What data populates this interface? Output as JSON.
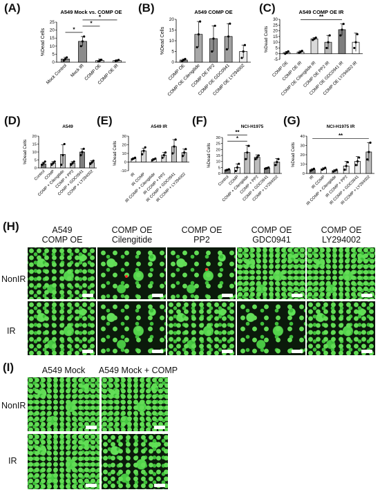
{
  "panels": {
    "A": {
      "letter": "(A)",
      "title": "A549 Mock vs. COMP OE"
    },
    "B": {
      "letter": "(B)",
      "title": "A549 COMP OE"
    },
    "C": {
      "letter": "(C)",
      "title": "A549 COMP OE IR"
    },
    "D": {
      "letter": "(D)",
      "title": "A549"
    },
    "E": {
      "letter": "(E)",
      "title": "A549 IR"
    },
    "F": {
      "letter": "(F)",
      "title": "NCI-H1975"
    },
    "G": {
      "letter": "(G)",
      "title": "NCI-H1975 IR"
    },
    "H": {
      "letter": "(H)"
    },
    "I": {
      "letter": "(I)"
    }
  },
  "chart_data": [
    {
      "id": "A",
      "type": "bar",
      "title": "A549 Mock vs. COMP OE",
      "ylabel": "%Dead Cells",
      "ylim": [
        0,
        25
      ],
      "yticks": [
        0,
        5,
        10,
        15,
        20,
        25
      ],
      "categories": [
        "Mock Control",
        "Mock IR",
        "COMP OE",
        "COMP OE IR"
      ],
      "values": [
        2,
        13,
        1,
        1
      ],
      "errors": [
        1,
        3,
        1,
        0.5
      ],
      "fills": [
        "#8c8c8c",
        "#8c8c8c",
        "#d9d9d9",
        "#d9d9d9"
      ],
      "points": [
        [
          1,
          2,
          3
        ],
        [
          10,
          13,
          16
        ],
        [
          0.5,
          1,
          1.5
        ],
        [
          0.8,
          1,
          1.4
        ]
      ],
      "sig": [
        {
          "a": 0,
          "b": 1,
          "label": "*"
        },
        {
          "a": 1,
          "b": 2,
          "label": "*"
        },
        {
          "a": 1,
          "b": 3,
          "label": "*"
        }
      ]
    },
    {
      "id": "B",
      "type": "bar",
      "title": "A549 COMP OE",
      "ylabel": "%Dead Cells",
      "ylim": [
        0,
        20
      ],
      "yticks": [
        0,
        5,
        10,
        15,
        20
      ],
      "categories": [
        "COMP OE",
        "COMP OE Cilengitide",
        "COMP OE PP2",
        "COMP OE GDC0941",
        "COMP OE LY294002"
      ],
      "values": [
        1,
        13,
        11,
        12,
        5
      ],
      "errors": [
        0.5,
        6,
        6,
        6,
        3
      ],
      "fills": [
        "#8c8c8c",
        "#a8a8a8",
        "#8c8c8c",
        "#a0a0a0",
        "#ececec"
      ],
      "points": [
        [
          0.5,
          1,
          1.5
        ],
        [
          7,
          13,
          19
        ],
        [
          5,
          11,
          17
        ],
        [
          6,
          12,
          18
        ],
        [
          2,
          5,
          8
        ]
      ],
      "sig": []
    },
    {
      "id": "C",
      "type": "bar",
      "title": "A549 COMP OE IR",
      "ylabel": "%Dead Cells",
      "ylim": [
        -5,
        30
      ],
      "yticks": [
        -5,
        0,
        5,
        10,
        15,
        20,
        25,
        30
      ],
      "categories": [
        "COMP OE",
        "COMP OE IR",
        "COMP OE Cilengitide IR",
        "COMP OE PP2 IR",
        "COMP OE GDC0941 IR",
        "COMP OE LY294002 IR"
      ],
      "values": [
        1,
        1.5,
        13,
        10,
        21,
        10
      ],
      "errors": [
        1,
        1,
        1,
        6,
        5,
        8
      ],
      "fills": [
        "#ffffff",
        "#ffffff",
        "#d9d9d9",
        "#b8b8b8",
        "#7f7f7f",
        "#ffffff"
      ],
      "points": [
        [
          0,
          1,
          2
        ],
        [
          1,
          1.5,
          2.5
        ],
        [
          12,
          13,
          14
        ],
        [
          5,
          10,
          16
        ],
        [
          16,
          21,
          26
        ],
        [
          5,
          10,
          17
        ]
      ],
      "sig": [
        {
          "a": 1,
          "b": 4,
          "label": "**"
        }
      ]
    },
    {
      "id": "D",
      "type": "bar",
      "title": "A549",
      "ylabel": "%Dead Cells",
      "ylim": [
        0,
        20
      ],
      "yticks": [
        0,
        5,
        10,
        15,
        20
      ],
      "categories": [
        "Control",
        "COMP",
        "COMP + Cilengitide",
        "COMP + PP2",
        "COMP + GDC0941",
        "COMP + LY294002"
      ],
      "values": [
        2.5,
        3,
        8.5,
        3,
        10,
        3.5
      ],
      "errors": [
        1,
        1,
        6,
        1,
        2,
        1
      ],
      "fills": [
        "#7f7f7f",
        "#d9d9d9",
        "#bdbdbd",
        "#bdbdbd",
        "#7f7f7f",
        "#bdbdbd"
      ],
      "points": [
        [
          2,
          3,
          4
        ],
        [
          2,
          3,
          4
        ],
        [
          2,
          8,
          15
        ],
        [
          2,
          3,
          4
        ],
        [
          8,
          10,
          12
        ],
        [
          2.5,
          3.5,
          4.5
        ]
      ],
      "sig": []
    },
    {
      "id": "E",
      "type": "bar",
      "title": "A549 IR",
      "ylabel": "%Dead Cells",
      "ylim": [
        -10,
        30
      ],
      "yticks": [
        -10,
        0,
        10,
        20,
        30
      ],
      "categories": [
        "IR",
        "IR COMP",
        "IR COMP + Cilengitide",
        "IR COMP + PP2",
        "IR COMP + GDC0941",
        "IR COMP + LY294002"
      ],
      "values": [
        4,
        13,
        3,
        8,
        18,
        11
      ],
      "errors": [
        1,
        3,
        1,
        3,
        8,
        4
      ],
      "fills": [
        "#ffffff",
        "#d9d9d9",
        "#ffffff",
        "#d9d9d9",
        "#bdbdbd",
        "#bdbdbd"
      ],
      "points": [
        [
          3,
          4,
          5
        ],
        [
          9,
          13,
          17
        ],
        [
          2,
          3,
          4
        ],
        [
          5,
          8,
          11
        ],
        [
          10,
          18,
          26
        ],
        [
          7,
          11,
          15
        ]
      ],
      "sig": []
    },
    {
      "id": "F",
      "type": "bar",
      "title": "NCI-H1975",
      "ylabel": "%Dead Cells",
      "ylim": [
        0,
        30
      ],
      "yticks": [
        0,
        5,
        10,
        15,
        20,
        25,
        30
      ],
      "categories": [
        "Control",
        "COMP",
        "COMP + Cilengitide",
        "COMP + PP2",
        "COMP + GDC0941",
        "COMP + LY294002"
      ],
      "values": [
        3,
        5,
        17.5,
        13.5,
        4.5,
        9.5
      ],
      "errors": [
        0.5,
        3,
        6,
        2,
        0.5,
        3
      ],
      "fills": [
        "#7f7f7f",
        "#ececec",
        "#bdbdbd",
        "#bdbdbd",
        "#7f7f7f",
        "#bdbdbd"
      ],
      "points": [
        [
          2.5,
          3,
          3.5
        ],
        [
          2,
          5,
          8
        ],
        [
          12,
          17.5,
          23
        ],
        [
          12,
          13.5,
          15
        ],
        [
          4,
          4.5,
          5
        ],
        [
          7,
          9.5,
          12
        ]
      ],
      "sig": [
        {
          "a": 0,
          "b": 2,
          "label": "*"
        },
        {
          "a": 0,
          "b": 2,
          "label": "**"
        }
      ]
    },
    {
      "id": "G",
      "type": "bar",
      "title": "NCI-H1975 IR",
      "ylabel": "%Dead Cells",
      "ylim": [
        0,
        40
      ],
      "yticks": [
        0,
        10,
        20,
        30,
        40
      ],
      "categories": [
        "IR",
        "IR COMP",
        "IR COMP + Cilengitide",
        "IR COMP + PP2",
        "IR COMP + GDC0941",
        "IR COMP + LY294002"
      ],
      "values": [
        4,
        5,
        3,
        8,
        13,
        23
      ],
      "errors": [
        1,
        1,
        1,
        5,
        5,
        10
      ],
      "fills": [
        "#7f7f7f",
        "#ffffff",
        "#bdbdbd",
        "#ececec",
        "#ececec",
        "#bdbdbd"
      ],
      "points": [
        [
          3,
          4,
          5
        ],
        [
          4,
          5,
          6
        ],
        [
          2,
          3,
          4
        ],
        [
          4,
          8,
          12
        ],
        [
          9,
          13,
          17
        ],
        [
          15,
          23,
          33
        ]
      ],
      "sig": [
        {
          "a": 0,
          "b": 5,
          "label": "**"
        }
      ]
    }
  ],
  "H": {
    "columns": [
      "A549\nCOMP OE",
      "COMP OE\nCilengitide",
      "COMP OE\nPP2",
      "COMP OE\nGDC0941",
      "COMP OE\nLY294002"
    ],
    "rows": [
      "NonIR",
      "IR"
    ]
  },
  "I": {
    "columns": [
      "A549 Mock",
      "A549 Mock + COMP"
    ],
    "rows": [
      "NonIR",
      "IR"
    ]
  },
  "colors": {
    "micro_bg": "#0b1a0b",
    "cell_green": "#5bd652",
    "dead_red": "#ff2a2a"
  }
}
